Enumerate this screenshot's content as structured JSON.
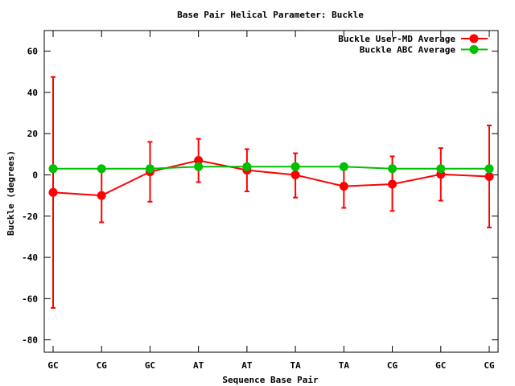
{
  "chart_data": {
    "type": "line",
    "title": "Base Pair Helical Parameter: Buckle",
    "xlabel": "Sequence Base Pair",
    "ylabel": "Buckle (degrees)",
    "categories": [
      "GC",
      "CG",
      "GC",
      "AT",
      "AT",
      "TA",
      "TA",
      "CG",
      "GC",
      "CG"
    ],
    "ylim": [
      -86,
      70
    ],
    "yticks": [
      60,
      40,
      20,
      0,
      -20,
      -40,
      -60,
      -80
    ],
    "grid": false,
    "legend_position": "top-right",
    "series": [
      {
        "name": "Buckle User-MD Average",
        "color": "#ff0000",
        "values": [
          -8.5,
          -10,
          1.5,
          7,
          2.3,
          0,
          -5.5,
          -4.5,
          0.3,
          -0.8
        ],
        "err_low": [
          -64.5,
          -23,
          -13,
          -3.5,
          -8,
          -11,
          -16,
          -17.5,
          -12.5,
          -25.5
        ],
        "err_high": [
          47.5,
          3,
          16,
          17.5,
          12.5,
          10.5,
          4.5,
          9,
          13,
          24
        ]
      },
      {
        "name": "Buckle ABC Average",
        "color": "#00c000",
        "values": [
          3,
          3,
          3,
          4,
          4,
          4,
          4,
          3,
          3,
          3
        ]
      }
    ]
  }
}
